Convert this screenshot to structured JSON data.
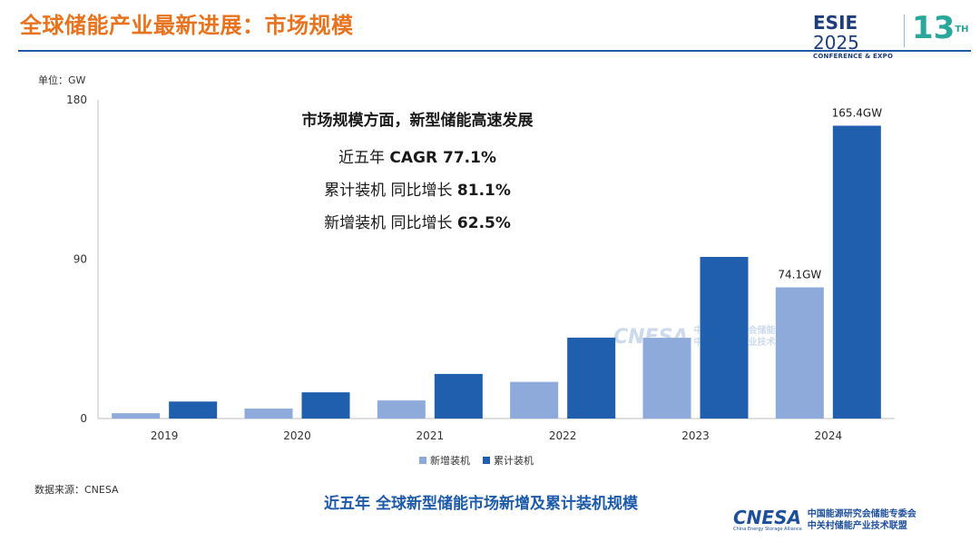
{
  "slide": {
    "title": "全球储能产业最新进展：市场规模",
    "logo": {
      "brand_a": "ESIE",
      "brand_b": " 2025",
      "sub": "CONFERENCE & EXPO",
      "edition": "13",
      "edition_sup": "TH"
    },
    "unit_label": "单位：GW",
    "headline": {
      "main": "市场规模方面，新型储能高速发展",
      "line1_label": "近五年 ",
      "line1_value": "CAGR 77.1%",
      "line2_label": "累计装机 同比增长 ",
      "line2_value": "81.1%",
      "line3_label": "新增装机 同比增长 ",
      "line3_value": "62.5%"
    },
    "source": "数据来源：CNESA",
    "caption": "近五年 全球新型储能市场新增及累计装机规模",
    "watermark": {
      "brand": "CNESA",
      "cn_line1": "中国能源研究会储能专委会",
      "cn_line2": "中关村储能产业技术联盟"
    },
    "footer_logo": {
      "brand": "CNESA",
      "tag": "China Energy Storage Alliance",
      "cn_line1": "中国能源研究会储能专委会",
      "cn_line2": "中关村储能产业技术联盟"
    }
  },
  "chart_data": {
    "type": "bar",
    "categories": [
      "2019",
      "2020",
      "2021",
      "2022",
      "2023",
      "2024"
    ],
    "series": [
      {
        "name": "新增装机",
        "values": [
          3.0,
          5.6,
          10.2,
          20.7,
          45.6,
          74.1
        ],
        "color": "#8eaadb"
      },
      {
        "name": "累计装机",
        "values": [
          9.6,
          14.8,
          25.2,
          45.7,
          91.3,
          165.4
        ],
        "color": "#1f5fad"
      }
    ],
    "data_labels": {
      "2024": [
        "74.1GW",
        "165.4GW"
      ]
    },
    "yticks": [
      "0",
      "90",
      "180"
    ],
    "ylim": [
      0,
      180
    ],
    "grid": false,
    "legend": "bottom-center"
  }
}
